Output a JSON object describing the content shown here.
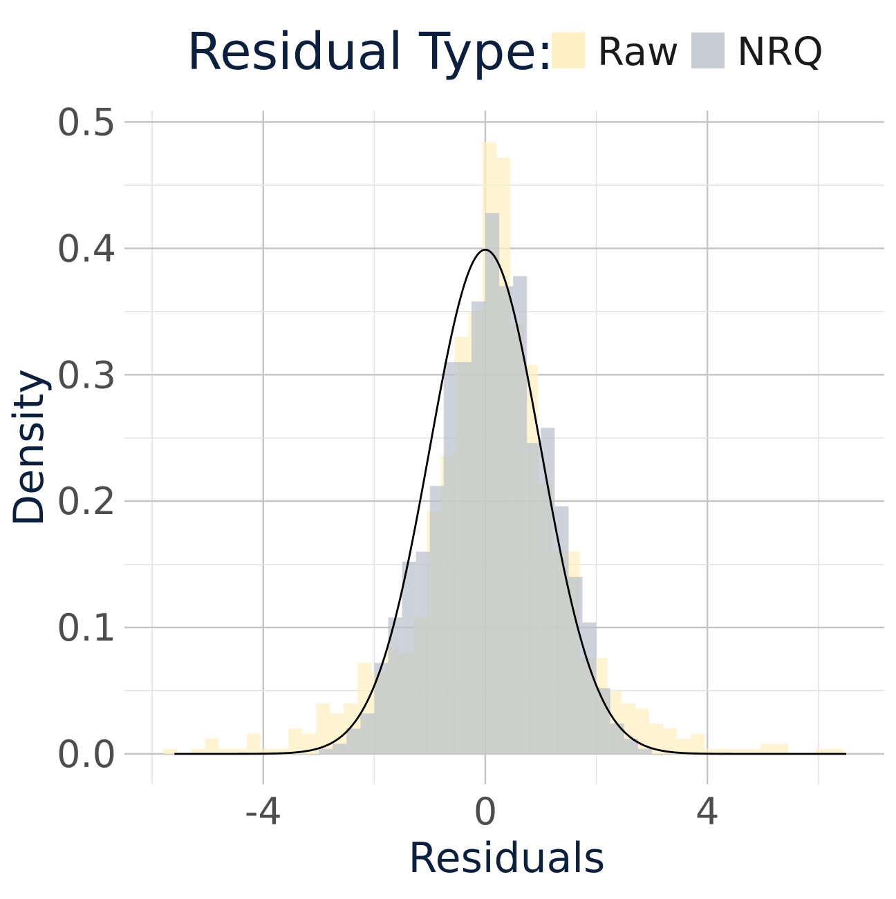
{
  "chart_data": {
    "type": "histogram",
    "xlabel": "Residuals",
    "ylabel": "Density",
    "xlim": [
      -6.0,
      6.0
    ],
    "ylim": [
      0.0,
      0.5
    ],
    "x_ticks": [
      -4,
      0,
      4
    ],
    "x_tick_labels": [
      "-4",
      "0",
      "4"
    ],
    "y_ticks": [
      0.0,
      0.1,
      0.2,
      0.3,
      0.4,
      0.5
    ],
    "y_tick_labels": [
      "0.0",
      "0.1",
      "0.2",
      "0.3",
      "0.4",
      "0.5"
    ],
    "grid": true,
    "legend": {
      "title": "Residual Type:",
      "position": "top",
      "entries": [
        {
          "label": "Raw",
          "color": "#fdf0c2"
        },
        {
          "label": "NRQ",
          "color": "#c8cdd6"
        }
      ]
    },
    "series": [
      {
        "name": "Raw",
        "color": "#fdf0c2",
        "opacity": 0.75,
        "bin_width": 0.25,
        "bins": [
          {
            "x0": -5.8,
            "x1": -5.55,
            "density": 0.004
          },
          {
            "x0": -5.55,
            "x1": -5.3,
            "density": 0.0
          },
          {
            "x0": -5.3,
            "x1": -5.05,
            "density": 0.004
          },
          {
            "x0": -5.05,
            "x1": -4.8,
            "density": 0.012
          },
          {
            "x0": -4.8,
            "x1": -4.55,
            "density": 0.004
          },
          {
            "x0": -4.55,
            "x1": -4.3,
            "density": 0.004
          },
          {
            "x0": -4.3,
            "x1": -4.05,
            "density": 0.016
          },
          {
            "x0": -4.05,
            "x1": -3.8,
            "density": 0.004
          },
          {
            "x0": -3.8,
            "x1": -3.55,
            "density": 0.004
          },
          {
            "x0": -3.55,
            "x1": -3.3,
            "density": 0.02
          },
          {
            "x0": -3.3,
            "x1": -3.05,
            "density": 0.016
          },
          {
            "x0": -3.05,
            "x1": -2.8,
            "density": 0.04
          },
          {
            "x0": -2.8,
            "x1": -2.55,
            "density": 0.032
          },
          {
            "x0": -2.55,
            "x1": -2.3,
            "density": 0.04
          },
          {
            "x0": -2.3,
            "x1": -2.05,
            "density": 0.072
          },
          {
            "x0": -2.05,
            "x1": -1.8,
            "density": 0.064
          },
          {
            "x0": -1.8,
            "x1": -1.55,
            "density": 0.084
          },
          {
            "x0": -1.55,
            "x1": -1.3,
            "density": 0.08
          },
          {
            "x0": -1.3,
            "x1": -1.05,
            "density": 0.108
          },
          {
            "x0": -1.05,
            "x1": -0.8,
            "density": 0.192
          },
          {
            "x0": -0.8,
            "x1": -0.55,
            "density": 0.236
          },
          {
            "x0": -0.55,
            "x1": -0.3,
            "density": 0.33
          },
          {
            "x0": -0.3,
            "x1": -0.05,
            "density": 0.35
          },
          {
            "x0": -0.05,
            "x1": 0.2,
            "density": 0.484
          },
          {
            "x0": 0.2,
            "x1": 0.45,
            "density": 0.472
          },
          {
            "x0": 0.45,
            "x1": 0.7,
            "density": 0.34
          },
          {
            "x0": 0.7,
            "x1": 0.95,
            "density": 0.308
          },
          {
            "x0": 0.95,
            "x1": 1.2,
            "density": 0.214
          },
          {
            "x0": 1.2,
            "x1": 1.45,
            "density": 0.16
          },
          {
            "x0": 1.45,
            "x1": 1.7,
            "density": 0.16
          },
          {
            "x0": 1.7,
            "x1": 1.95,
            "density": 0.076
          },
          {
            "x0": 1.95,
            "x1": 2.2,
            "density": 0.076
          },
          {
            "x0": 2.2,
            "x1": 2.45,
            "density": 0.05
          },
          {
            "x0": 2.45,
            "x1": 2.7,
            "density": 0.04
          },
          {
            "x0": 2.7,
            "x1": 2.95,
            "density": 0.036
          },
          {
            "x0": 2.95,
            "x1": 3.2,
            "density": 0.024
          },
          {
            "x0": 3.2,
            "x1": 3.45,
            "density": 0.02
          },
          {
            "x0": 3.45,
            "x1": 3.7,
            "density": 0.012
          },
          {
            "x0": 3.7,
            "x1": 3.95,
            "density": 0.016
          },
          {
            "x0": 3.95,
            "x1": 4.2,
            "density": 0.004
          },
          {
            "x0": 4.2,
            "x1": 4.45,
            "density": 0.004
          },
          {
            "x0": 4.45,
            "x1": 4.7,
            "density": 0.004
          },
          {
            "x0": 4.7,
            "x1": 4.95,
            "density": 0.004
          },
          {
            "x0": 4.95,
            "x1": 5.2,
            "density": 0.008
          },
          {
            "x0": 5.2,
            "x1": 5.45,
            "density": 0.008
          },
          {
            "x0": 5.45,
            "x1": 5.7,
            "density": 0.0
          },
          {
            "x0": 5.7,
            "x1": 5.95,
            "density": 0.0
          },
          {
            "x0": 5.95,
            "x1": 6.2,
            "density": 0.004
          },
          {
            "x0": 6.2,
            "x1": 6.45,
            "density": 0.004
          }
        ]
      },
      {
        "name": "NRQ",
        "color": "#b8bfcc",
        "opacity": 0.7,
        "bin_width": 0.25,
        "bins": [
          {
            "x0": -3.0,
            "x1": -2.75,
            "density": 0.004
          },
          {
            "x0": -2.75,
            "x1": -2.5,
            "density": 0.008
          },
          {
            "x0": -2.5,
            "x1": -2.25,
            "density": 0.02
          },
          {
            "x0": -2.25,
            "x1": -2.0,
            "density": 0.032
          },
          {
            "x0": -2.0,
            "x1": -1.75,
            "density": 0.072
          },
          {
            "x0": -1.75,
            "x1": -1.5,
            "density": 0.108
          },
          {
            "x0": -1.5,
            "x1": -1.25,
            "density": 0.152
          },
          {
            "x0": -1.25,
            "x1": -1.0,
            "density": 0.16
          },
          {
            "x0": -1.0,
            "x1": -0.75,
            "density": 0.212
          },
          {
            "x0": -0.75,
            "x1": -0.5,
            "density": 0.31
          },
          {
            "x0": -0.5,
            "x1": -0.25,
            "density": 0.31
          },
          {
            "x0": -0.25,
            "x1": 0.0,
            "density": 0.358
          },
          {
            "x0": 0.0,
            "x1": 0.25,
            "density": 0.428
          },
          {
            "x0": 0.25,
            "x1": 0.5,
            "density": 0.37
          },
          {
            "x0": 0.5,
            "x1": 0.75,
            "density": 0.378
          },
          {
            "x0": 0.75,
            "x1": 1.0,
            "density": 0.246
          },
          {
            "x0": 1.0,
            "x1": 1.25,
            "density": 0.258
          },
          {
            "x0": 1.25,
            "x1": 1.5,
            "density": 0.196
          },
          {
            "x0": 1.5,
            "x1": 1.75,
            "density": 0.14
          },
          {
            "x0": 1.75,
            "x1": 2.0,
            "density": 0.104
          },
          {
            "x0": 2.0,
            "x1": 2.25,
            "density": 0.052
          },
          {
            "x0": 2.25,
            "x1": 2.5,
            "density": 0.024
          },
          {
            "x0": 2.5,
            "x1": 2.75,
            "density": 0.012
          },
          {
            "x0": 2.75,
            "x1": 3.0,
            "density": 0.004
          }
        ]
      }
    ],
    "reference_curve": {
      "type": "normal_density",
      "mean": 0,
      "sd": 1,
      "x_range": [
        -5.6,
        6.5
      ],
      "color": "#000000"
    }
  }
}
